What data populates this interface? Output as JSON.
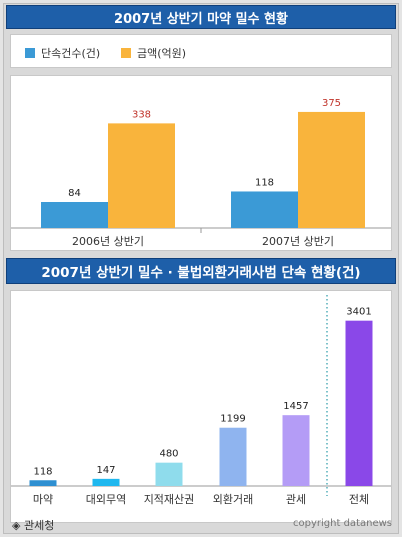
{
  "titles": {
    "top": "2007년 상반기 마약 밀수 현황",
    "bottom": "2007년 상반기 밀수 · 불법외환거래사범 단속 현황(건)"
  },
  "legend": {
    "count_label": "단속건수(건)",
    "amount_label": "금액(억원)"
  },
  "colors": {
    "blue": "#3b9ad6",
    "orange": "#f9b43c",
    "red_label": "#c0332a"
  },
  "source": "◈ 관세청",
  "copyright": "copyright datanews",
  "chart_data": [
    {
      "type": "bar",
      "title": "2007년 상반기 마약 밀수 현황",
      "categories": [
        "2006년 상반기",
        "2007년 상반기"
      ],
      "series": [
        {
          "name": "단속건수(건)",
          "values": [
            84,
            118
          ]
        },
        {
          "name": "금액(억원)",
          "values": [
            338,
            375
          ]
        }
      ],
      "ylim": [
        0,
        420
      ],
      "grid": false,
      "legend": "top-left"
    },
    {
      "type": "bar",
      "title": "2007년 상반기 밀수 · 불법외환거래사범 단속 현황(건)",
      "categories": [
        "마약",
        "대외무역",
        "지적재산권",
        "외환거래",
        "관세",
        "전체"
      ],
      "values": [
        118,
        147,
        480,
        1199,
        1457,
        3401
      ],
      "bar_colors": [
        "#2e8fd1",
        "#1fb8ef",
        "#8fdcec",
        "#8fb4ef",
        "#b49cf6",
        "#8a48e8"
      ],
      "ylim": [
        0,
        3600
      ],
      "grid": false
    }
  ]
}
